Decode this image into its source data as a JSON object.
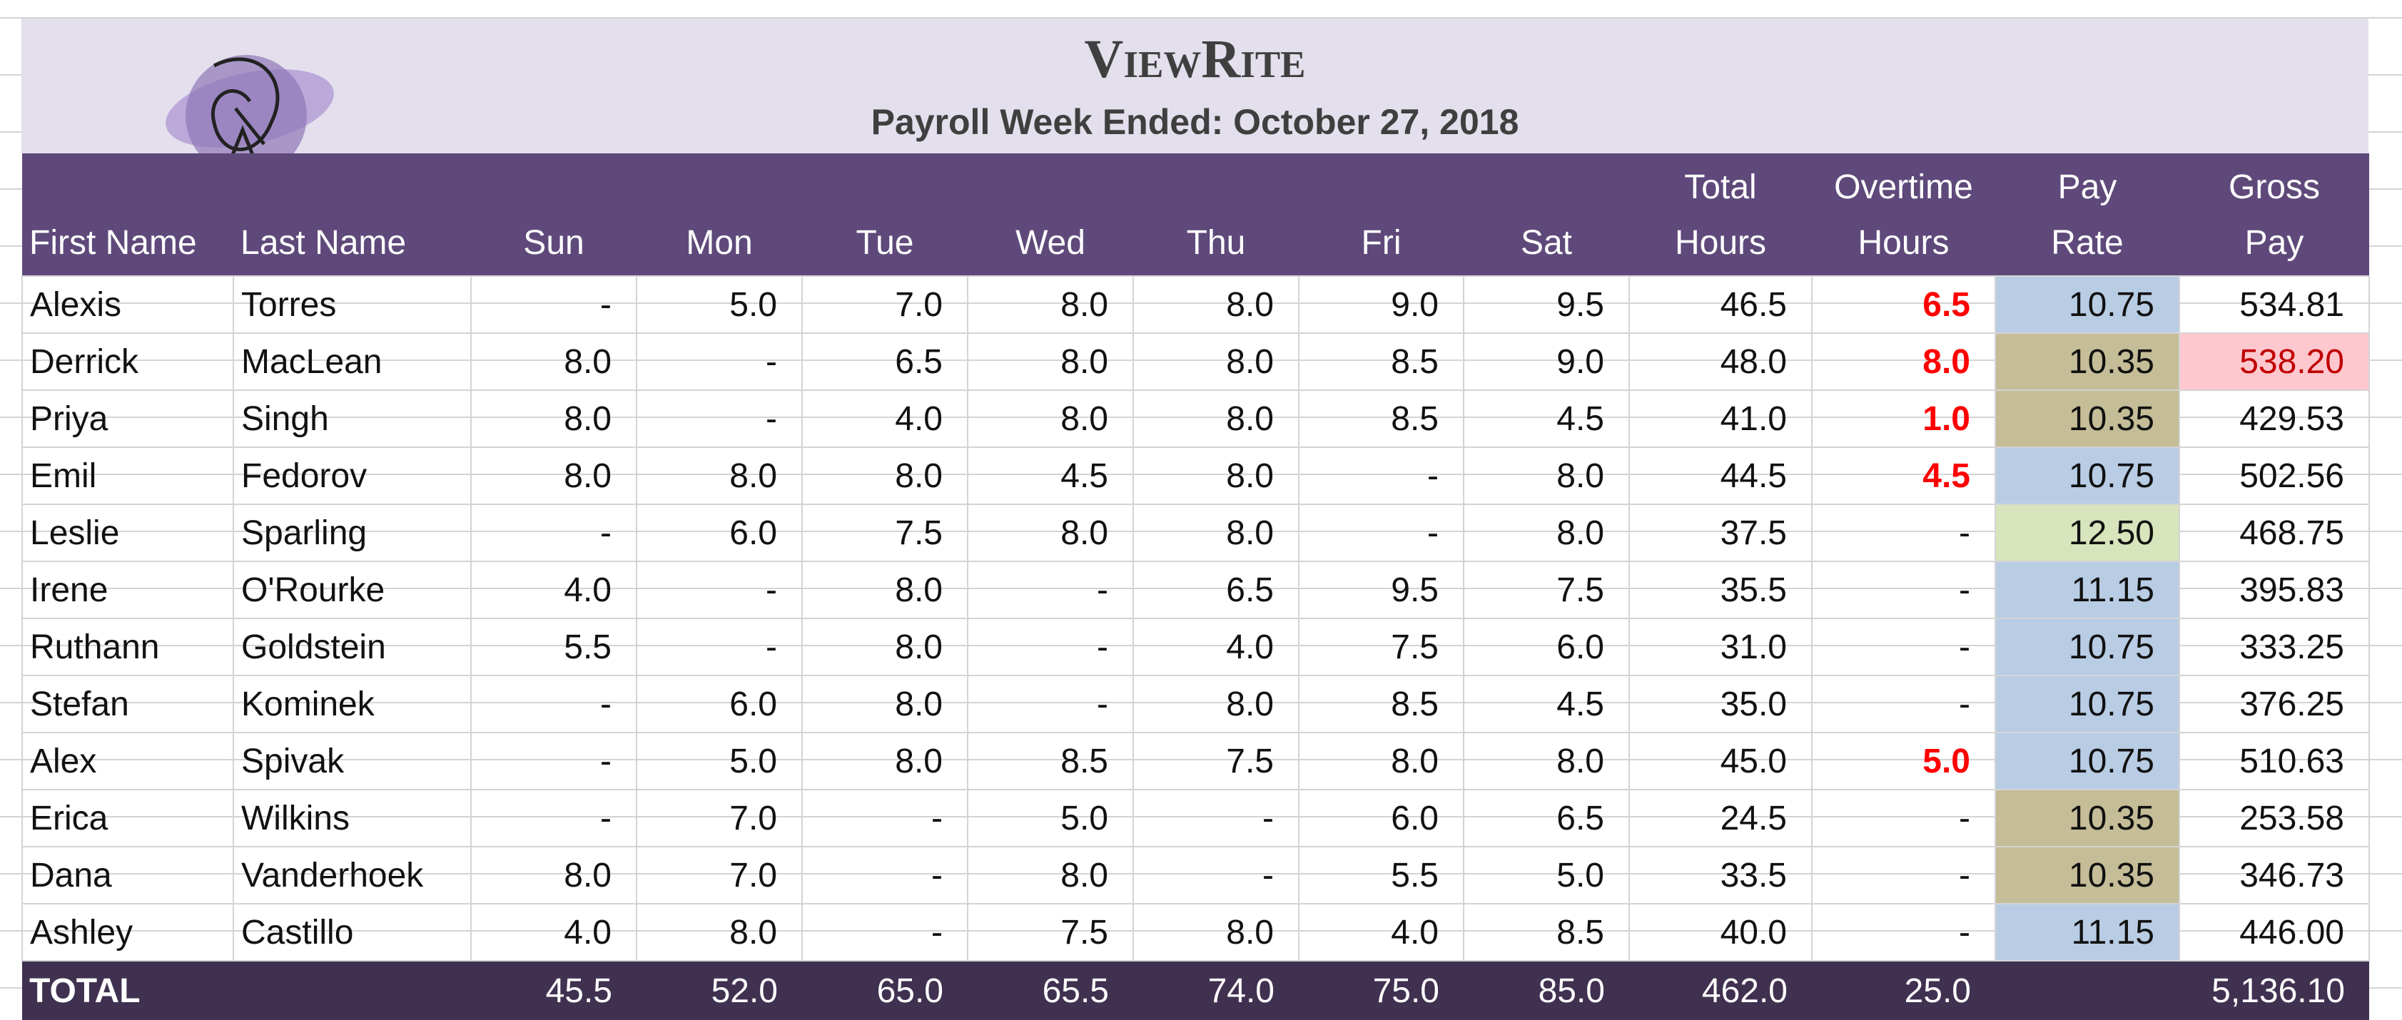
{
  "header": {
    "brand": "ViewRite",
    "subtitle": "Payroll Week Ended: October 27, 2018"
  },
  "table": {
    "columns": [
      "First Name",
      "Last Name",
      "Sun",
      "Mon",
      "Tue",
      "Wed",
      "Thu",
      "Fri",
      "Sat",
      "Total\nHours",
      "Overtime\nHours",
      "Pay\nRate",
      "Gross\nPay"
    ],
    "rows": [
      [
        "Alexis",
        "Torres",
        "-",
        "5.0",
        "7.0",
        "8.0",
        "8.0",
        "9.0",
        "9.5",
        "46.5",
        "6.5",
        "10.75",
        "534.81"
      ],
      [
        "Derrick",
        "MacLean",
        "8.0",
        "-",
        "6.5",
        "8.0",
        "8.0",
        "8.5",
        "9.0",
        "48.0",
        "8.0",
        "10.35",
        "538.20"
      ],
      [
        "Priya",
        "Singh",
        "8.0",
        "-",
        "4.0",
        "8.0",
        "8.0",
        "8.5",
        "4.5",
        "41.0",
        "1.0",
        "10.35",
        "429.53"
      ],
      [
        "Emil",
        "Fedorov",
        "8.0",
        "8.0",
        "8.0",
        "4.5",
        "8.0",
        "-",
        "8.0",
        "44.5",
        "4.5",
        "10.75",
        "502.56"
      ],
      [
        "Leslie",
        "Sparling",
        "-",
        "6.0",
        "7.5",
        "8.0",
        "8.0",
        "-",
        "8.0",
        "37.5",
        "-",
        "12.50",
        "468.75"
      ],
      [
        "Irene",
        "O'Rourke",
        "4.0",
        "-",
        "8.0",
        "-",
        "6.5",
        "9.5",
        "7.5",
        "35.5",
        "-",
        "11.15",
        "395.83"
      ],
      [
        "Ruthann",
        "Goldstein",
        "5.5",
        "-",
        "8.0",
        "-",
        "4.0",
        "7.5",
        "6.0",
        "31.0",
        "-",
        "10.75",
        "333.25"
      ],
      [
        "Stefan",
        "Kominek",
        "-",
        "6.0",
        "8.0",
        "-",
        "8.0",
        "8.5",
        "4.5",
        "35.0",
        "-",
        "10.75",
        "376.25"
      ],
      [
        "Alex",
        "Spivak",
        "-",
        "5.0",
        "8.0",
        "8.5",
        "7.5",
        "8.0",
        "8.0",
        "45.0",
        "5.0",
        "10.75",
        "510.63"
      ],
      [
        "Erica",
        "Wilkins",
        "-",
        "7.0",
        "-",
        "5.0",
        "-",
        "6.0",
        "6.5",
        "24.5",
        "-",
        "10.35",
        "253.58"
      ],
      [
        "Dana",
        "Vanderhoek",
        "8.0",
        "7.0",
        "-",
        "8.0",
        "-",
        "5.5",
        "5.0",
        "33.5",
        "-",
        "10.35",
        "346.73"
      ],
      [
        "Ashley",
        "Castillo",
        "4.0",
        "8.0",
        "-",
        "7.5",
        "8.0",
        "4.0",
        "8.5",
        "40.0",
        "-",
        "11.15",
        "446.00"
      ]
    ],
    "total": {
      "label": "TOTAL",
      "hours": [
        "45.5",
        "52.0",
        "65.0",
        "65.5",
        "74.0",
        "75.0",
        "85.0",
        "462.0",
        "25.0"
      ],
      "gross": "5,136.10"
    }
  }
}
